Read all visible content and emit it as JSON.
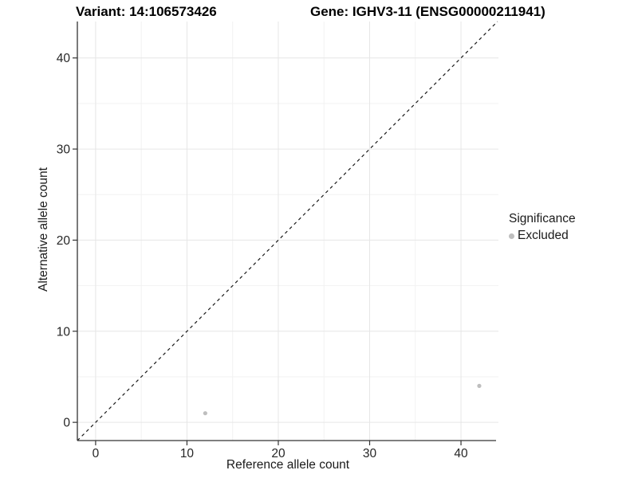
{
  "chart_data": {
    "type": "scatter",
    "title_left": "Variant: 14:106573426",
    "title_right": "Gene: IGHV3-11 (ENSG00000211941)",
    "xlabel": "Reference allele count",
    "ylabel": "Alternative allele count",
    "xlim": [
      -2,
      44.1
    ],
    "ylim": [
      -2,
      44
    ],
    "xticks": [
      0,
      10,
      20,
      30,
      40
    ],
    "yticks": [
      0,
      10,
      20,
      30,
      40
    ],
    "minor_grid_step": 5,
    "grid": true,
    "points": [
      {
        "x": 12,
        "y": 1,
        "series": "Excluded"
      },
      {
        "x": 42,
        "y": 4,
        "series": "Excluded"
      }
    ],
    "abline": {
      "slope": 1,
      "intercept": 0,
      "style": "dashed"
    },
    "legend": {
      "title": "Significance",
      "position": "right",
      "entries": [
        {
          "label": "Excluded",
          "color": "#bebebe"
        }
      ]
    },
    "style": {
      "point_color": "#bebebe",
      "abline_color": "#1a1a1a",
      "axis_line_color": "#333333",
      "tick_label_color": "#262626",
      "grid_major_color": "#e6e6e6",
      "grid_minor_color": "#f2f2f2",
      "background": "#ffffff"
    }
  }
}
